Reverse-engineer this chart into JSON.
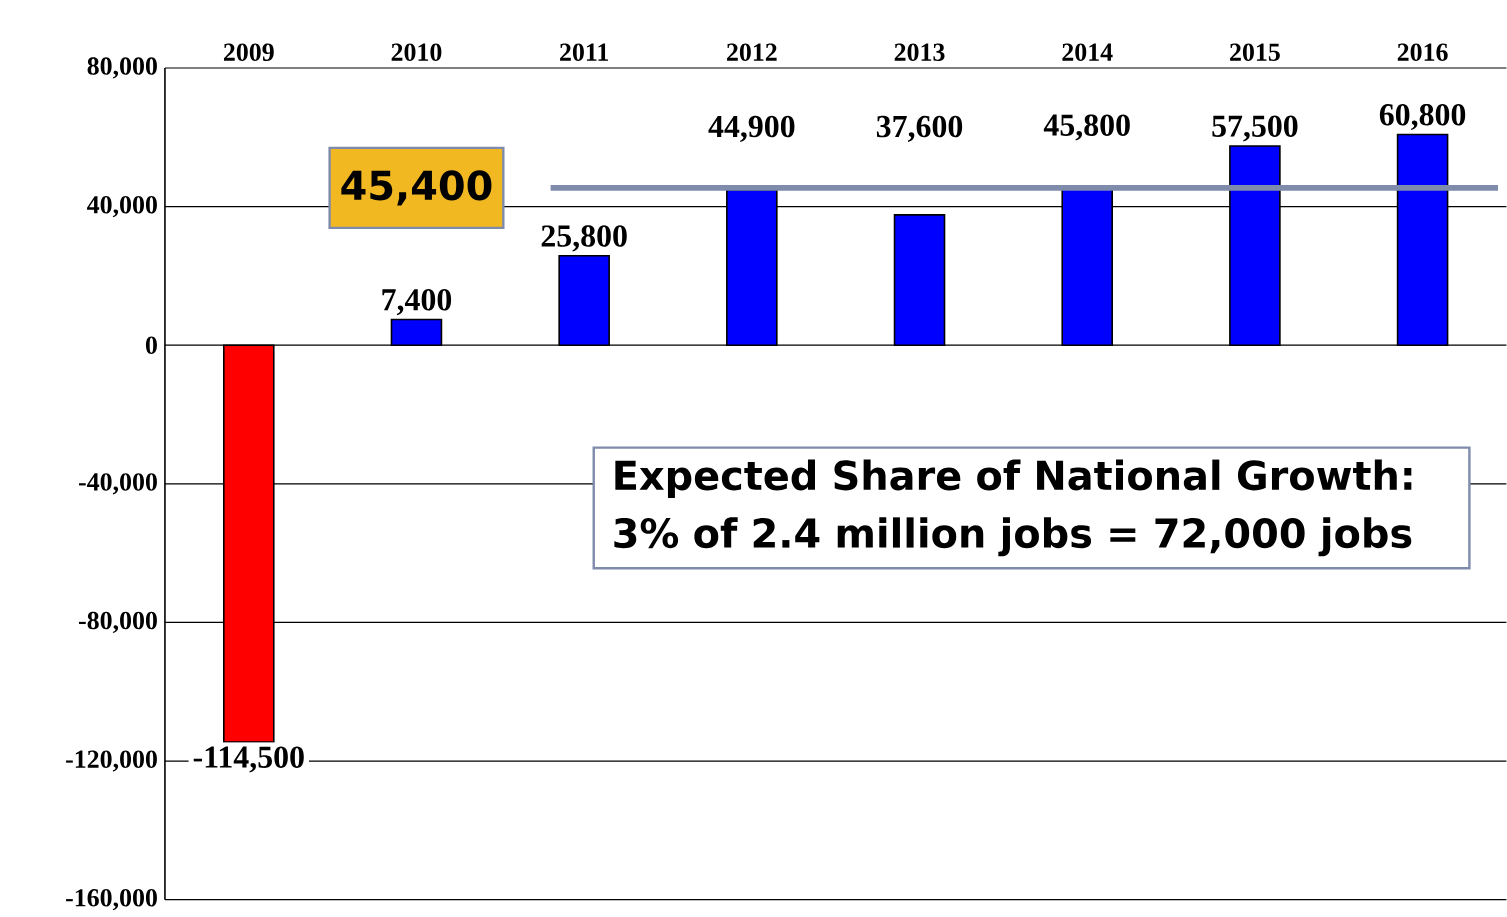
{
  "chart_data": {
    "type": "bar",
    "categories": [
      "2009",
      "2010",
      "2011",
      "2012",
      "2013",
      "2014",
      "2015",
      "2016"
    ],
    "values": [
      -114500,
      7400,
      25800,
      44900,
      37600,
      45800,
      57500,
      60800
    ],
    "colors": [
      "#ff0000",
      "#0000ff",
      "#0000ff",
      "#0000ff",
      "#0000ff",
      "#0000ff",
      "#0000ff",
      "#0000ff"
    ],
    "value_labels": [
      "-114,500",
      "7,400",
      "25,800",
      "44,900",
      "37,600",
      "45,800",
      "57,500",
      "60,800"
    ],
    "ylim": [
      -160000,
      80000
    ],
    "yticks": [
      {
        "value": -160000,
        "label": "-160,000"
      },
      {
        "value": -120000,
        "label": "-120,000"
      },
      {
        "value": -80000,
        "label": "-80,000"
      },
      {
        "value": -40000,
        "label": "-40,000"
      },
      {
        "value": 0,
        "label": "0"
      },
      {
        "value": 40000,
        "label": "40,000"
      },
      {
        "value": 80000,
        "label": "80,000"
      }
    ],
    "grid": "y",
    "ref_lines": [
      {
        "axis": "y",
        "value": 45400,
        "label": "45,400",
        "color": "#7f8bab"
      }
    ],
    "annotations": [
      "Expected Share of National Growth:",
      "3% of 2.4 million jobs = 72,000 jobs"
    ]
  }
}
